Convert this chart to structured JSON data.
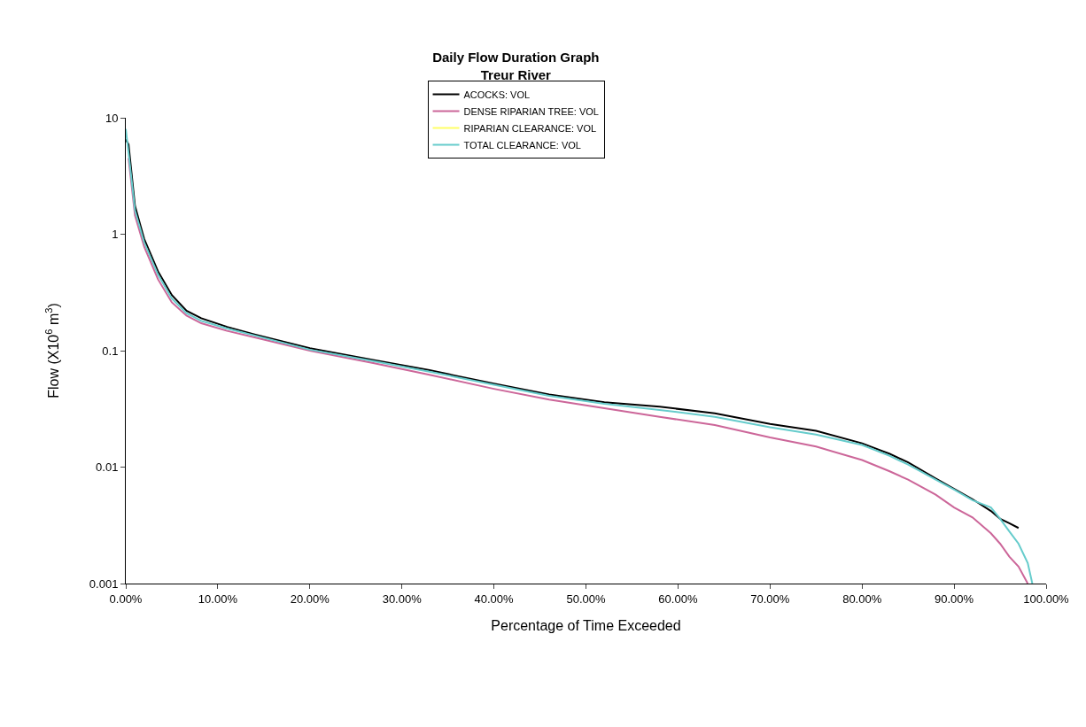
{
  "chart_data": {
    "type": "line",
    "title": "Daily Flow Duration Graph\nTreur River",
    "xlabel": "Percentage of Time Exceeded",
    "ylabel": "Flow (X10$^{6}$ m$^{3}$)",
    "x": [
      0,
      0.3,
      1,
      2,
      3.5,
      5,
      6.6,
      8.2,
      11,
      14,
      20,
      27,
      33,
      40,
      46,
      52,
      58,
      64,
      70,
      75,
      80,
      83,
      85,
      88,
      90,
      92,
      94,
      95,
      96,
      97,
      98,
      98.5
    ],
    "series": [
      {
        "name": "ACOCKS: VOL",
        "color": "#000000",
        "values": [
          6.5,
          5.9,
          1.75,
          0.91,
          0.48,
          0.3,
          0.22,
          0.19,
          0.16,
          0.138,
          0.105,
          0.083,
          0.068,
          0.052,
          0.042,
          0.036,
          0.033,
          0.029,
          0.0235,
          0.0205,
          0.016,
          0.013,
          0.011,
          0.008,
          0.0065,
          0.0053,
          0.0042,
          0.0036,
          0.0033,
          0.003,
          null,
          null
        ]
      },
      {
        "name": "DENSE RIPARIAN TREE: VOL",
        "color": "#cc6699",
        "values": [
          null,
          4.5,
          1.45,
          0.78,
          0.41,
          0.26,
          0.2,
          0.172,
          0.148,
          0.13,
          0.1,
          0.078,
          0.062,
          0.047,
          0.038,
          0.032,
          0.027,
          0.023,
          0.018,
          0.015,
          0.0115,
          0.0092,
          0.0078,
          0.0058,
          0.0045,
          0.0037,
          0.0027,
          0.0022,
          0.0017,
          0.0014,
          0.001,
          null
        ]
      },
      {
        "name": "RIPARIAN CLEARANCE: VOL",
        "color": "#ffff66",
        "values": [
          null,
          null,
          null,
          null,
          null,
          null,
          null,
          null,
          null,
          null,
          null,
          null,
          null,
          null,
          null,
          null,
          null,
          null,
          null,
          null,
          null,
          null,
          null,
          null,
          null,
          null,
          null,
          null,
          null,
          null,
          null,
          null
        ]
      },
      {
        "name": "TOTAL CLEARANCE: VOL",
        "color": "#66cccc",
        "values": [
          8,
          5,
          1.6,
          0.85,
          0.45,
          0.28,
          0.21,
          0.18,
          0.155,
          0.135,
          0.102,
          0.081,
          0.066,
          0.051,
          0.041,
          0.035,
          0.031,
          0.027,
          0.022,
          0.019,
          0.0155,
          0.0125,
          0.0105,
          0.0078,
          0.0064,
          0.0052,
          0.0045,
          0.0036,
          0.0028,
          0.0022,
          0.0015,
          0.001
        ]
      }
    ],
    "xlim": [
      0,
      100
    ],
    "xticks": [
      {
        "value": 0,
        "label": "0.00%"
      },
      {
        "value": 10,
        "label": "10.00%"
      },
      {
        "value": 20,
        "label": "20.00%"
      },
      {
        "value": 30,
        "label": "30.00%"
      },
      {
        "value": 40,
        "label": "40.00%"
      },
      {
        "value": 50,
        "label": "50.00%"
      },
      {
        "value": 60,
        "label": "60.00%"
      },
      {
        "value": 70,
        "label": "70.00%"
      },
      {
        "value": 80,
        "label": "80.00%"
      },
      {
        "value": 90,
        "label": "90.00%"
      },
      {
        "value": 100,
        "label": "100.00%"
      }
    ],
    "ylim": [
      0.001,
      10
    ],
    "yticks": [
      0.001,
      0.01,
      0.1,
      1,
      10
    ],
    "log": true,
    "grid": false,
    "legend": "top",
    "marker": "none",
    "line_style": "solid"
  }
}
